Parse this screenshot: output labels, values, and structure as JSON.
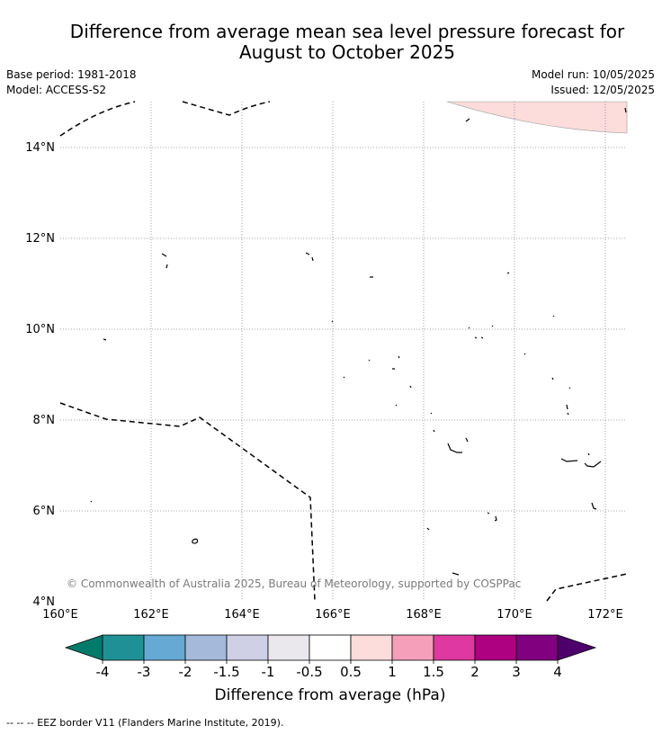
{
  "title_line1": "Difference from average mean sea level pressure forecast for",
  "title_line2": "August to October 2025",
  "meta": {
    "base_period": "Base period: 1981-2018",
    "model": "Model: ACCESS-S2",
    "model_run": "Model run: 10/05/2025",
    "issued": "Issued: 12/05/2025"
  },
  "map": {
    "lon_range": [
      160,
      172.5
    ],
    "lat_range": [
      4,
      15
    ],
    "lon_ticks": [
      "160°E",
      "162°E",
      "164°E",
      "166°E",
      "168°E",
      "170°E",
      "172°E"
    ],
    "lat_ticks": [
      "14°N",
      "12°N",
      "10°N",
      "8°N",
      "6°N",
      "4°N"
    ],
    "copyright": "© Commonwealth of Australia 2025, Bureau of Meteorology, supported by COSPPac",
    "anomaly_region_color": "#fddcdc"
  },
  "colorbar": {
    "labels": [
      "-4",
      "-3",
      "-2",
      "-1.5",
      "-1",
      "-0.5",
      "0.5",
      "1",
      "1.5",
      "2",
      "3",
      "4"
    ],
    "colors": [
      "#007a6a",
      "#1f9196",
      "#66a9d4",
      "#a5b9da",
      "#cfd0e6",
      "#eae8ed",
      "#ffffff",
      "#fddcdc",
      "#f59fbb",
      "#df38a0",
      "#ad0181",
      "#800080",
      "#4d006b"
    ],
    "title": "Difference from average (hPa)"
  },
  "footnote": "-- -- -- EEZ border V11 (Flanders Marine Institute, 2019)."
}
